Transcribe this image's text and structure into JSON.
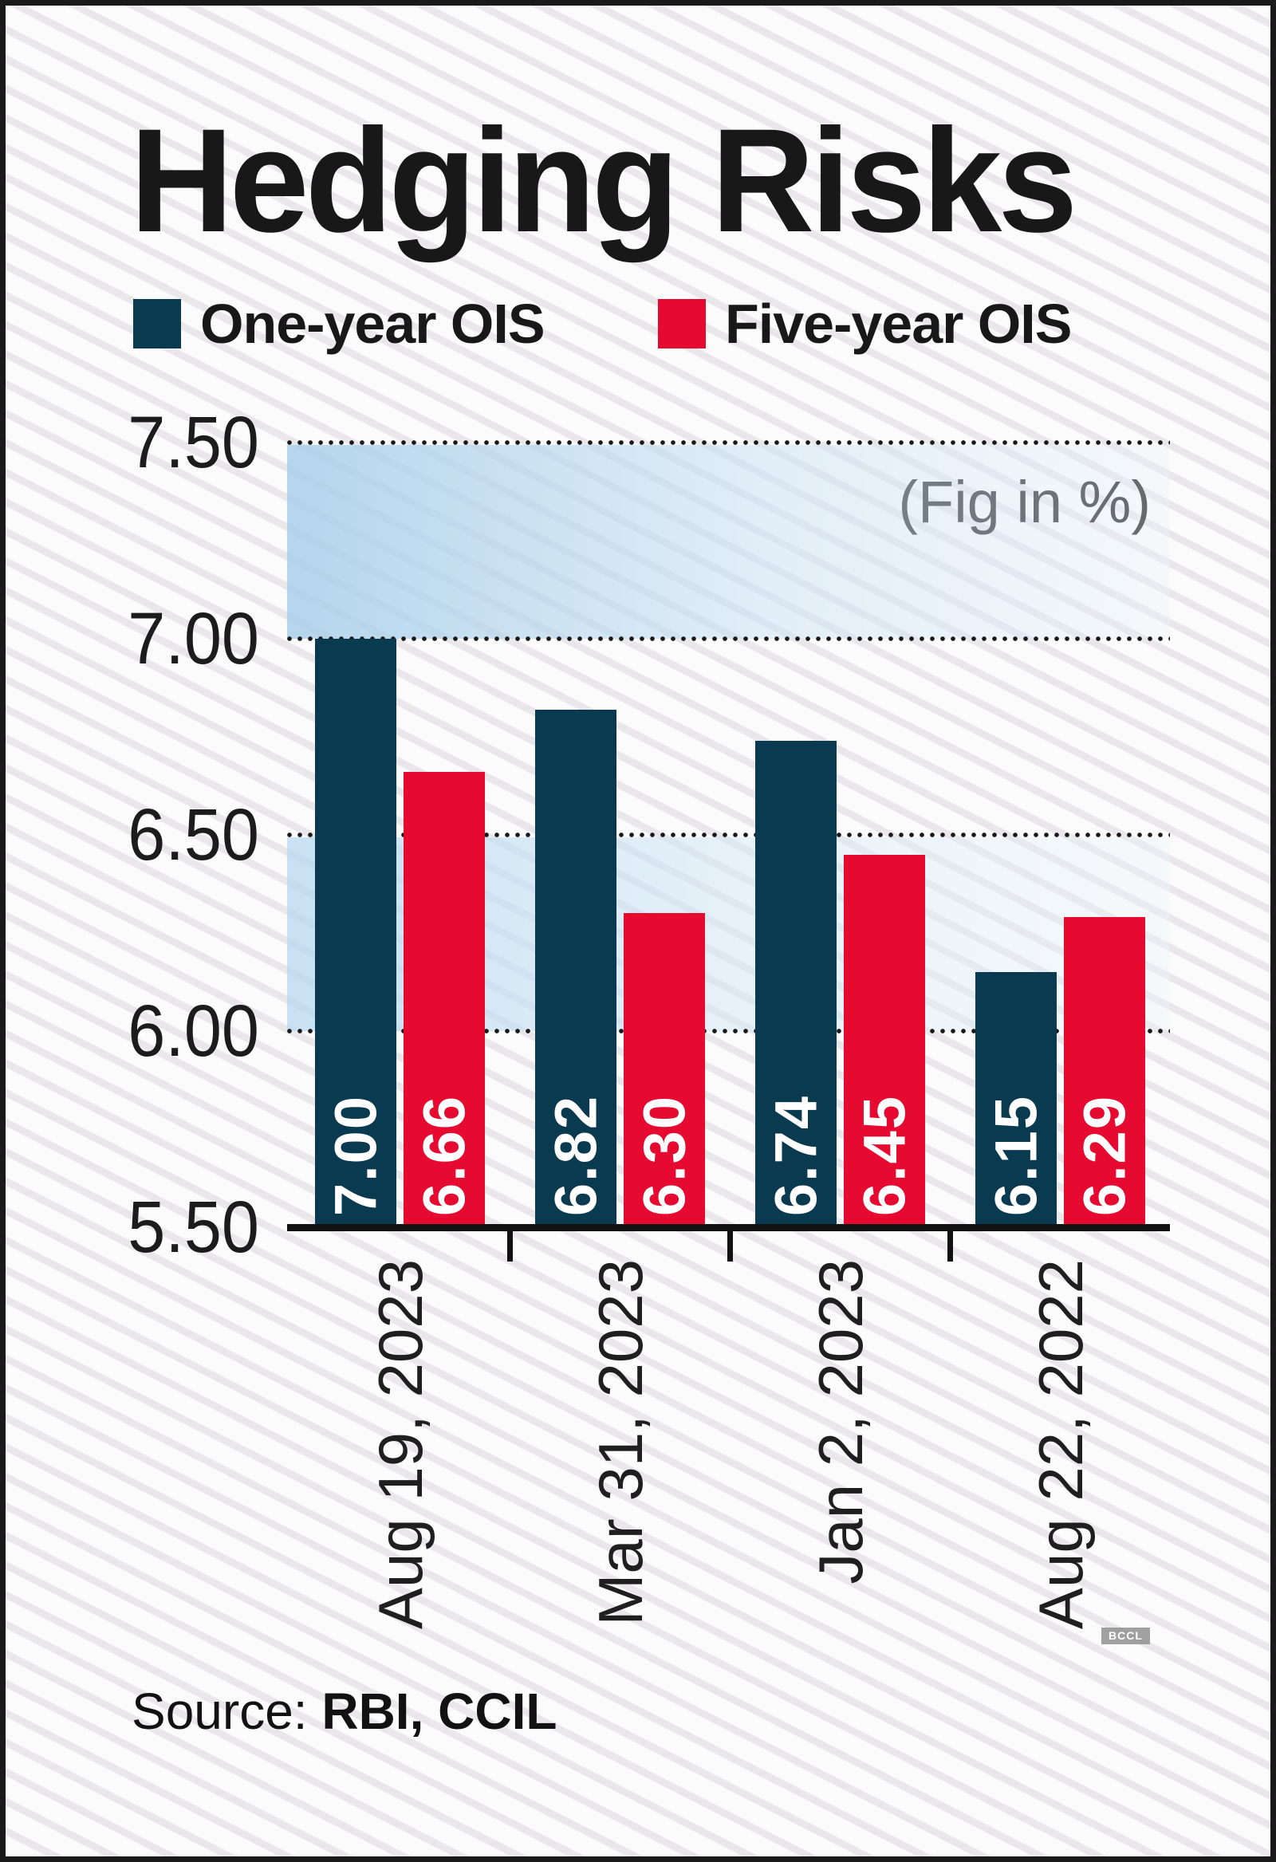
{
  "title": "Hedging Risks",
  "note": "(Fig in %)",
  "legend": [
    {
      "label": "One-year OIS",
      "color": "#0a3a4f"
    },
    {
      "label": "Five-year OIS",
      "color": "#e60a31"
    }
  ],
  "source": {
    "label": "Source: ",
    "value": "RBI, CCIL"
  },
  "watermark": "BCCL",
  "chart_data": {
    "type": "bar",
    "title": "Hedging Risks",
    "annotation": "(Fig in %)",
    "unit": "%",
    "categories": [
      "Aug 19, 2023",
      "Mar 31, 2023",
      "Jan 2, 2023",
      "Aug 22, 2022"
    ],
    "series": [
      {
        "name": "One-year OIS",
        "color": "#0a3a4f",
        "values": [
          7.0,
          6.82,
          6.74,
          6.15
        ]
      },
      {
        "name": "Five-year OIS",
        "color": "#e60a31",
        "values": [
          6.66,
          6.3,
          6.45,
          6.29
        ]
      }
    ],
    "yticks": [
      7.5,
      7.0,
      6.5,
      6.0,
      5.5
    ],
    "ylim": [
      5.5,
      7.5
    ],
    "grid": "dotted-horizontal",
    "highlight_bands": [
      [
        7.0,
        7.5
      ],
      [
        6.0,
        6.5
      ]
    ],
    "legend_position": "top",
    "value_labels": "inside-bottom-rotated",
    "source": "RBI, CCIL"
  }
}
